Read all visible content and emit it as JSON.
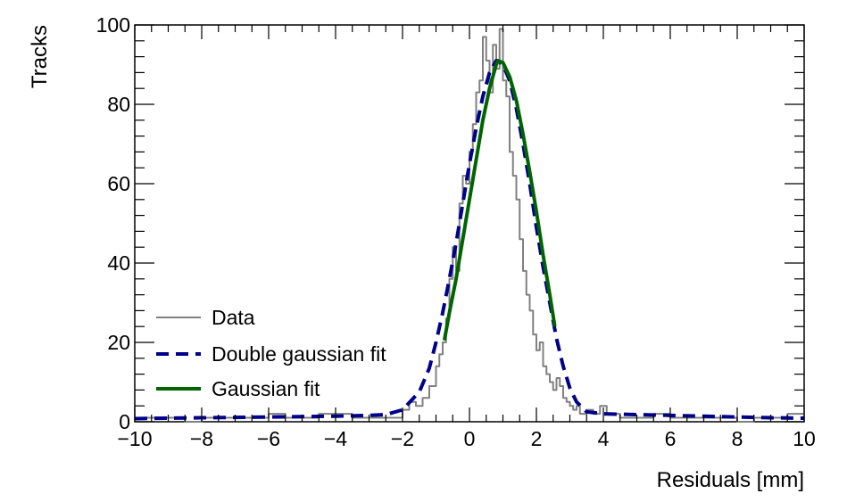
{
  "chart_data": {
    "type": "line",
    "title": "",
    "xlabel": "Residuals [mm]",
    "ylabel": "Tracks",
    "xlim": [
      -10,
      10
    ],
    "ylim": [
      0,
      100
    ],
    "grid": false,
    "legend_position": "bottom-left",
    "x_ticks": [
      -10,
      -8,
      -6,
      -4,
      -2,
      0,
      2,
      4,
      6,
      8,
      10
    ],
    "y_ticks": [
      0,
      20,
      40,
      60,
      80,
      100
    ],
    "colors": {
      "data": "#808080",
      "double_gaussian": "#00008b",
      "gaussian": "#006400"
    },
    "series": [
      {
        "name": "Data",
        "style": "histogram",
        "bin_width": 0.1,
        "x": [
          -10.0,
          -9.5,
          -9.0,
          -8.5,
          -8.0,
          -7.5,
          -7.0,
          -6.5,
          -6.0,
          -5.5,
          -5.0,
          -4.5,
          -4.0,
          -3.5,
          -3.0,
          -2.5,
          -2.0,
          -1.8,
          -1.6,
          -1.4,
          -1.2,
          -1.0,
          -0.9,
          -0.8,
          -0.7,
          -0.6,
          -0.5,
          -0.4,
          -0.3,
          -0.2,
          -0.1,
          0.0,
          0.1,
          0.2,
          0.3,
          0.4,
          0.5,
          0.6,
          0.7,
          0.8,
          0.9,
          1.0,
          1.1,
          1.2,
          1.3,
          1.4,
          1.5,
          1.6,
          1.7,
          1.8,
          1.9,
          2.0,
          2.1,
          2.2,
          2.3,
          2.4,
          2.5,
          2.6,
          2.7,
          2.8,
          2.9,
          3.0,
          3.1,
          3.2,
          3.3,
          3.4,
          3.5,
          3.7,
          3.9,
          4.1,
          4.5,
          5.0,
          5.5,
          6.0,
          6.5,
          7.0,
          7.5,
          8.0,
          8.5,
          9.0,
          9.5
        ],
        "values": [
          1,
          1,
          1,
          0,
          1,
          1,
          1,
          1,
          2,
          1,
          1,
          2,
          2,
          1,
          1,
          1,
          3,
          5,
          4,
          6,
          9,
          14,
          17,
          20,
          26,
          36,
          44,
          38,
          55,
          62,
          60,
          68,
          75,
          83,
          86,
          97,
          91,
          83,
          95,
          89,
          99,
          86,
          82,
          68,
          62,
          56,
          46,
          38,
          32,
          28,
          22,
          18,
          20,
          14,
          12,
          10,
          8,
          11,
          9,
          6,
          5,
          4,
          3,
          4,
          2,
          2,
          3,
          2,
          4,
          2,
          1,
          1,
          2,
          1,
          1,
          1,
          1,
          0,
          1,
          1,
          2
        ]
      },
      {
        "name": "Double gaussian fit",
        "style": "dashed",
        "x": [
          -10,
          -9,
          -8,
          -7,
          -6,
          -5,
          -4,
          -3,
          -2.5,
          -2,
          -1.5,
          -1.2,
          -1,
          -0.8,
          -0.6,
          -0.4,
          -0.2,
          0,
          0.2,
          0.4,
          0.6,
          0.8,
          0.85,
          1,
          1.2,
          1.4,
          1.6,
          1.8,
          2,
          2.2,
          2.4,
          2.6,
          2.8,
          3,
          3.2,
          3.5,
          4,
          5,
          6,
          7,
          8,
          9,
          10
        ],
        "values": [
          0.8,
          0.9,
          1.0,
          1.1,
          1.2,
          1.3,
          1.4,
          1.6,
          1.8,
          3.0,
          7.5,
          13.5,
          20,
          27.5,
          36,
          45,
          55,
          65,
          74,
          82,
          88,
          91,
          91,
          90,
          86,
          79,
          70,
          60,
          49,
          39,
          30,
          21,
          14,
          8.5,
          5,
          2.5,
          2,
          1.8,
          1.6,
          1.4,
          1.2,
          1.0,
          0.9
        ]
      },
      {
        "name": "Gaussian fit",
        "style": "solid",
        "x": [
          -0.75,
          -0.6,
          -0.4,
          -0.2,
          0,
          0.2,
          0.4,
          0.6,
          0.8,
          0.85,
          1,
          1.2,
          1.4,
          1.6,
          1.8,
          2,
          2.2,
          2.4,
          2.55
        ],
        "values": [
          20.5,
          27.5,
          36,
          46,
          56,
          66,
          76,
          84,
          90,
          91,
          90.5,
          87,
          81,
          72.5,
          63,
          53,
          42,
          32,
          24
        ]
      }
    ]
  }
}
